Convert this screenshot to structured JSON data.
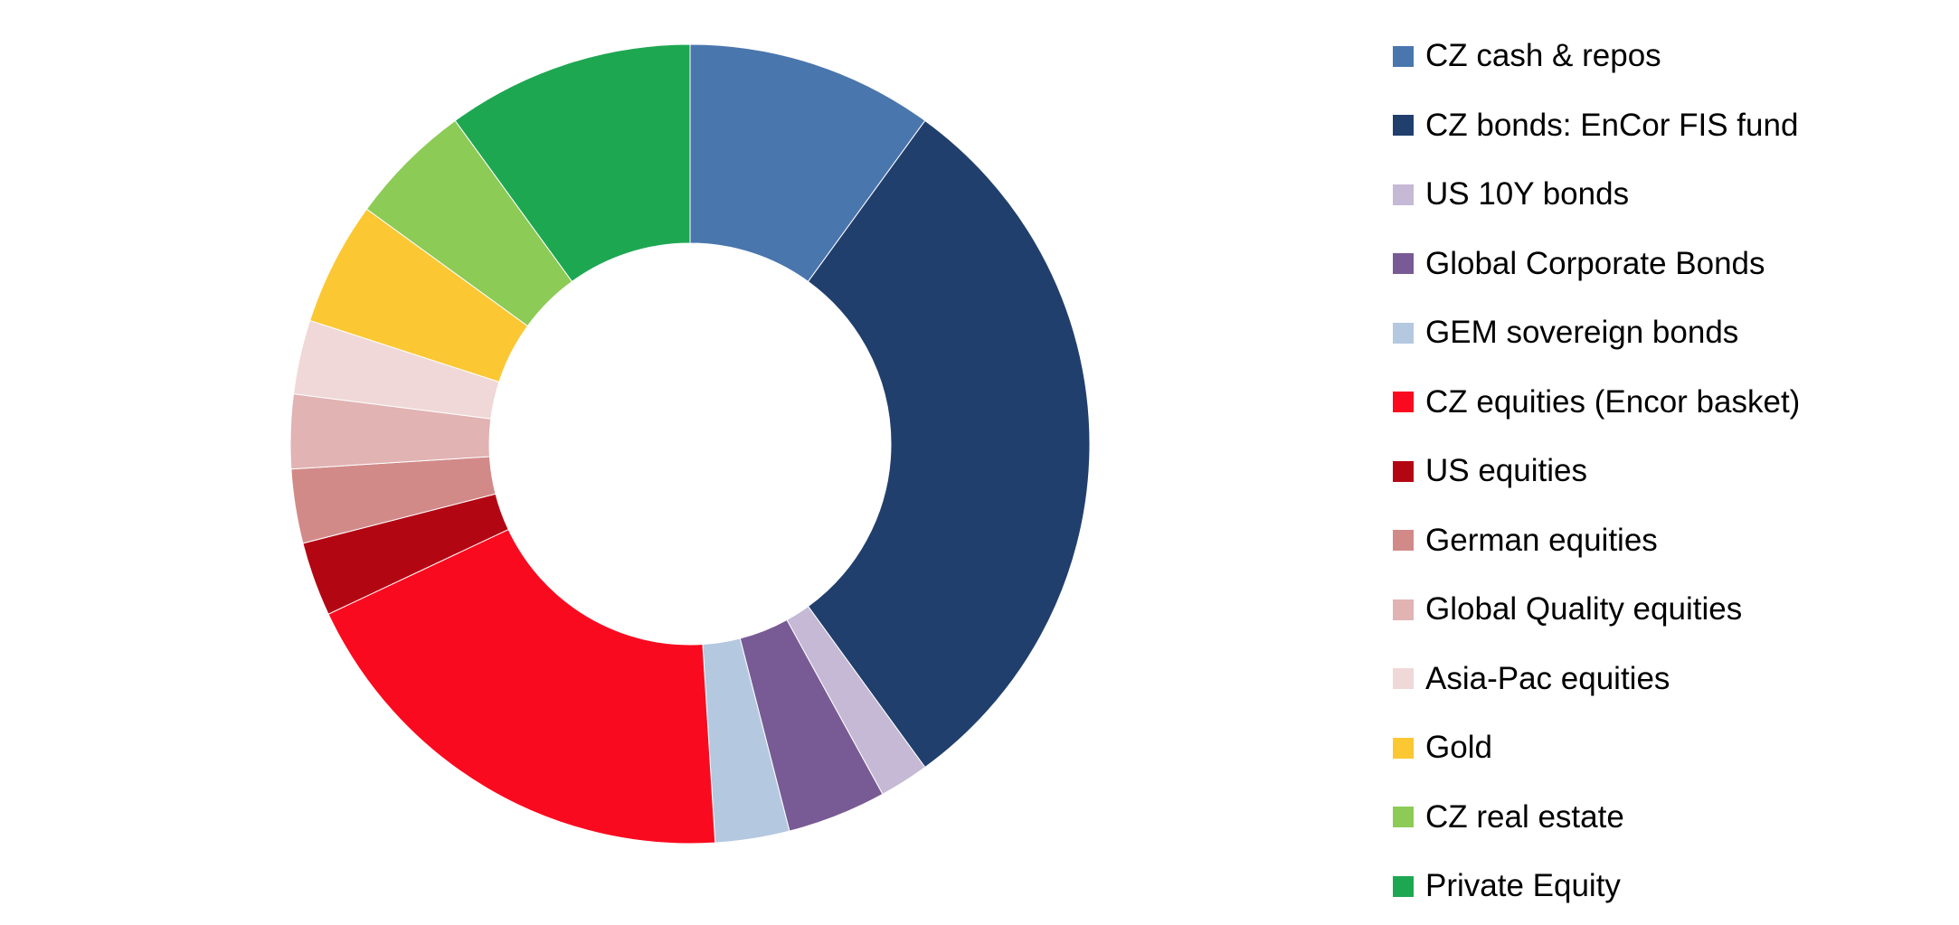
{
  "chart_data": {
    "type": "pie",
    "subtype": "donut",
    "title": "",
    "legend_position": "right",
    "series": [
      {
        "label": "CZ cash & repos",
        "value": 10.0,
        "color": "#4A76AE"
      },
      {
        "label": "CZ bonds: EnCor FIS fund",
        "value": 30.0,
        "color": "#213F6D"
      },
      {
        "label": "US 10Y bonds",
        "value": 2.0,
        "color": "#C5B9D5"
      },
      {
        "label": "Global Corporate Bonds",
        "value": 4.0,
        "color": "#785B94"
      },
      {
        "label": "GEM sovereign bonds",
        "value": 3.0,
        "color": "#B4C8E0"
      },
      {
        "label": "CZ equities (Encor basket)",
        "value": 19.0,
        "color": "#FA0A1F"
      },
      {
        "label": "US equities",
        "value": 3.0,
        "color": "#B30613"
      },
      {
        "label": "German equities",
        "value": 3.0,
        "color": "#D28A89"
      },
      {
        "label": "Global Quality equities",
        "value": 3.0,
        "color": "#E1B3B2"
      },
      {
        "label": "Asia-Pac equities",
        "value": 3.0,
        "color": "#EFD8D7"
      },
      {
        "label": "Gold",
        "value": 5.0,
        "color": "#FBC733"
      },
      {
        "label": "CZ real estate",
        "value": 5.0,
        "color": "#8CCB55"
      },
      {
        "label": "Private Equity",
        "value": 10.0,
        "color": "#1EA751"
      }
    ]
  }
}
